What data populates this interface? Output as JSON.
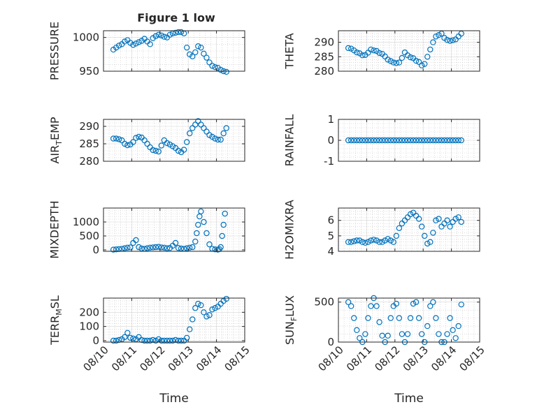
{
  "figure": {
    "title": "Figure 1 low",
    "colors": {
      "marker": "#0072BD",
      "axis": "#262626",
      "grid": "#b5b5b5",
      "background": "#ffffff"
    }
  },
  "chart_data": [
    {
      "type": "scatter",
      "ylabel": "PRESSURE",
      "title": "Figure 1 low",
      "ylim": [
        950,
        1010
      ],
      "yticks": [
        950,
        1000
      ],
      "xlim": [
        0,
        5
      ],
      "xticks": [],
      "grid": true,
      "marker": "circle-open",
      "x": [
        0.35,
        0.45,
        0.55,
        0.65,
        0.75,
        0.85,
        0.95,
        1.05,
        1.15,
        1.25,
        1.35,
        1.45,
        1.55,
        1.65,
        1.75,
        1.85,
        1.95,
        2.05,
        2.15,
        2.25,
        2.35,
        2.45,
        2.55,
        2.65,
        2.75,
        2.85,
        2.95,
        3.05,
        3.15,
        3.25,
        3.35,
        3.45,
        3.55,
        3.65,
        3.75,
        3.85,
        3.95,
        4.05,
        4.15,
        4.25,
        4.35
      ],
      "y": [
        982,
        985,
        988,
        990,
        994,
        996,
        992,
        989,
        991,
        993,
        995,
        998,
        994,
        990,
        999,
        1002,
        1004,
        1003,
        1001,
        1000,
        1004,
        1006,
        1007,
        1008,
        1008,
        1006,
        985,
        975,
        972,
        978,
        987,
        985,
        976,
        970,
        963,
        958,
        956,
        955,
        952,
        950,
        949
      ]
    },
    {
      "type": "scatter",
      "ylabel": "THETA",
      "ylim": [
        280,
        294
      ],
      "yticks": [
        280,
        285,
        290
      ],
      "xlim": [
        0,
        5
      ],
      "xticks": [],
      "grid": true,
      "marker": "circle-open",
      "x": [
        0.35,
        0.45,
        0.55,
        0.65,
        0.75,
        0.85,
        0.95,
        1.05,
        1.15,
        1.25,
        1.35,
        1.45,
        1.55,
        1.65,
        1.75,
        1.85,
        1.95,
        2.05,
        2.15,
        2.25,
        2.35,
        2.45,
        2.55,
        2.65,
        2.75,
        2.85,
        2.95,
        3.05,
        3.15,
        3.25,
        3.35,
        3.45,
        3.55,
        3.65,
        3.75,
        3.85,
        3.95,
        4.05,
        4.15,
        4.25,
        4.35
      ],
      "y": [
        288,
        287.8,
        287.2,
        286.5,
        286.2,
        285.5,
        285.6,
        286.4,
        287.5,
        287.2,
        287,
        286.3,
        286,
        285.1,
        284,
        283.5,
        283,
        282.8,
        283,
        284.6,
        286.5,
        285.5,
        284.8,
        284.5,
        283.6,
        283.2,
        282,
        282.5,
        285,
        287.5,
        290,
        292,
        292.5,
        293,
        291.5,
        290.8,
        290.5,
        290.7,
        291,
        292,
        293
      ]
    },
    {
      "type": "scatter",
      "ylabel": "AIR_TEMP",
      "ylim": [
        280,
        292
      ],
      "yticks": [
        280,
        285,
        290
      ],
      "xlim": [
        0,
        5
      ],
      "xticks": [],
      "grid": true,
      "marker": "circle-open",
      "x": [
        0.35,
        0.45,
        0.55,
        0.65,
        0.75,
        0.85,
        0.95,
        1.05,
        1.15,
        1.25,
        1.35,
        1.45,
        1.55,
        1.65,
        1.75,
        1.85,
        1.95,
        2.05,
        2.15,
        2.25,
        2.35,
        2.45,
        2.55,
        2.65,
        2.75,
        2.85,
        2.95,
        3.05,
        3.15,
        3.25,
        3.35,
        3.45,
        3.55,
        3.65,
        3.75,
        3.85,
        3.95,
        4.05,
        4.15,
        4.25,
        4.35
      ],
      "y": [
        286.5,
        286.5,
        286.3,
        286,
        285,
        284.6,
        284.8,
        285.5,
        286.7,
        287,
        286.8,
        286,
        285,
        284,
        283.2,
        283,
        282.8,
        284.5,
        286,
        285.2,
        284.8,
        284.3,
        283.8,
        283,
        282.6,
        283.3,
        285.5,
        288,
        289.5,
        290.5,
        291.5,
        290.5,
        289.5,
        288.5,
        287.5,
        287,
        286.5,
        286.2,
        286.2,
        288,
        289.5
      ]
    },
    {
      "type": "scatter",
      "ylabel": "RAINFALL",
      "ylim": [
        -1,
        1
      ],
      "yticks": [
        -1,
        0,
        1
      ],
      "xlim": [
        0,
        5
      ],
      "xticks": [],
      "grid": true,
      "marker": "circle-open",
      "x": [
        0.35,
        0.45,
        0.55,
        0.65,
        0.75,
        0.85,
        0.95,
        1.05,
        1.15,
        1.25,
        1.35,
        1.45,
        1.55,
        1.65,
        1.75,
        1.85,
        1.95,
        2.05,
        2.15,
        2.25,
        2.35,
        2.45,
        2.55,
        2.65,
        2.75,
        2.85,
        2.95,
        3.05,
        3.15,
        3.25,
        3.35,
        3.45,
        3.55,
        3.65,
        3.75,
        3.85,
        3.95,
        4.05,
        4.15,
        4.25,
        4.35
      ],
      "y": [
        0,
        0,
        0,
        0,
        0,
        0,
        0,
        0,
        0,
        0,
        0,
        0,
        0,
        0,
        0,
        0,
        0,
        0,
        0,
        0,
        0,
        0,
        0,
        0,
        0,
        0,
        0,
        0,
        0,
        0,
        0,
        0,
        0,
        0,
        0,
        0,
        0,
        0,
        0,
        0,
        0
      ]
    },
    {
      "type": "scatter",
      "ylabel": "MIXDEPTH",
      "ylim": [
        -50,
        1500
      ],
      "yticks": [
        0,
        500,
        1000
      ],
      "xlim": [
        0,
        5
      ],
      "xticks": [],
      "grid": true,
      "marker": "circle-open",
      "x": [
        0.35,
        0.45,
        0.55,
        0.65,
        0.75,
        0.85,
        0.95,
        1.05,
        1.15,
        1.25,
        1.35,
        1.45,
        1.55,
        1.65,
        1.75,
        1.85,
        1.95,
        2.05,
        2.15,
        2.25,
        2.35,
        2.45,
        2.55,
        2.65,
        2.75,
        2.85,
        2.95,
        3.05,
        3.15,
        3.25,
        3.3,
        3.35,
        3.4,
        3.45,
        3.55,
        3.65,
        3.75,
        3.85,
        3.95,
        4.05,
        4.1,
        4.15,
        4.2,
        4.25,
        4.3
      ],
      "y": [
        10,
        20,
        30,
        40,
        60,
        80,
        90,
        250,
        350,
        100,
        50,
        40,
        60,
        80,
        90,
        100,
        110,
        90,
        80,
        60,
        70,
        150,
        250,
        70,
        50,
        40,
        60,
        80,
        100,
        300,
        600,
        900,
        1200,
        1380,
        1000,
        600,
        200,
        40,
        20,
        10,
        30,
        100,
        500,
        900,
        1300
      ]
    },
    {
      "type": "scatter",
      "ylabel": "H2OMIXRA",
      "ylim": [
        4,
        6.8
      ],
      "yticks": [
        4,
        5,
        6
      ],
      "xlim": [
        0,
        5
      ],
      "xticks": [],
      "grid": true,
      "marker": "circle-open",
      "x": [
        0.35,
        0.45,
        0.55,
        0.65,
        0.75,
        0.85,
        0.95,
        1.05,
        1.15,
        1.25,
        1.35,
        1.45,
        1.55,
        1.65,
        1.75,
        1.85,
        1.95,
        2.05,
        2.15,
        2.25,
        2.35,
        2.45,
        2.55,
        2.65,
        2.75,
        2.85,
        2.95,
        3.05,
        3.15,
        3.25,
        3.35,
        3.45,
        3.55,
        3.65,
        3.75,
        3.85,
        3.95,
        4.05,
        4.15,
        4.25,
        4.35
      ],
      "y": [
        4.6,
        4.6,
        4.65,
        4.7,
        4.7,
        4.6,
        4.55,
        4.6,
        4.7,
        4.75,
        4.7,
        4.6,
        4.6,
        4.7,
        4.8,
        4.7,
        4.6,
        5,
        5.5,
        5.8,
        6,
        6.2,
        6.4,
        6.5,
        6.3,
        6.1,
        5.6,
        5,
        4.5,
        4.6,
        5.2,
        6,
        6.1,
        5.6,
        5.8,
        6,
        5.6,
        5.9,
        6.1,
        6.2,
        5.9
      ]
    },
    {
      "type": "scatter",
      "ylabel": "TERR_MSL",
      "xlabel": "Time",
      "ylim": [
        -10,
        300
      ],
      "yticks": [
        0,
        100,
        200
      ],
      "xlim": [
        0,
        5
      ],
      "xticks": [
        "08/10",
        "08/11",
        "08/12",
        "08/13",
        "08/14",
        "08/15"
      ],
      "grid": true,
      "marker": "circle-open",
      "x": [
        0.35,
        0.45,
        0.55,
        0.65,
        0.75,
        0.85,
        0.95,
        1.05,
        1.15,
        1.25,
        1.35,
        1.45,
        1.55,
        1.65,
        1.75,
        1.85,
        1.95,
        2.05,
        2.15,
        2.25,
        2.35,
        2.45,
        2.55,
        2.65,
        2.75,
        2.85,
        2.95,
        3.05,
        3.15,
        3.25,
        3.35,
        3.45,
        3.55,
        3.65,
        3.75,
        3.85,
        3.95,
        4.05,
        4.15,
        4.25,
        4.35
      ],
      "y": [
        0,
        0,
        5,
        10,
        25,
        55,
        20,
        15,
        10,
        25,
        5,
        0,
        0,
        0,
        5,
        0,
        10,
        0,
        0,
        0,
        0,
        0,
        5,
        0,
        0,
        0,
        20,
        80,
        150,
        230,
        260,
        250,
        200,
        170,
        180,
        220,
        230,
        240,
        260,
        280,
        295
      ]
    },
    {
      "type": "scatter",
      "ylabel": "SUN_FLUX",
      "xlabel": "Time",
      "ylim": [
        0,
        550
      ],
      "yticks": [
        0,
        500
      ],
      "xlim": [
        0,
        5
      ],
      "xticks": [
        "08/10",
        "08/11",
        "08/12",
        "08/13",
        "08/14",
        "08/15"
      ],
      "grid": true,
      "marker": "circle-open",
      "x": [
        0.35,
        0.45,
        0.55,
        0.65,
        0.75,
        0.85,
        0.95,
        1.05,
        1.15,
        1.25,
        1.35,
        1.45,
        1.55,
        1.65,
        1.75,
        1.85,
        1.95,
        2.05,
        2.15,
        2.25,
        2.35,
        2.45,
        2.55,
        2.65,
        2.75,
        2.85,
        2.95,
        3.05,
        3.15,
        3.25,
        3.35,
        3.45,
        3.55,
        3.65,
        3.75,
        3.85,
        3.95,
        4.05,
        4.15,
        4.25,
        4.35
      ],
      "y": [
        500,
        450,
        300,
        150,
        50,
        0,
        100,
        300,
        450,
        550,
        450,
        250,
        80,
        0,
        80,
        300,
        450,
        480,
        300,
        100,
        0,
        100,
        300,
        480,
        500,
        300,
        100,
        0,
        200,
        450,
        500,
        300,
        100,
        0,
        0,
        100,
        300,
        150,
        50,
        200,
        470
      ]
    }
  ]
}
